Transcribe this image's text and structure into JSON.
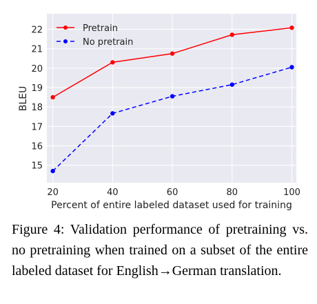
{
  "chart_data": {
    "type": "line",
    "title": "",
    "xlabel": "Percent of entire labeled dataset used for training",
    "ylabel": "BLEU",
    "x": [
      20,
      40,
      60,
      80,
      100
    ],
    "xticks": [
      "20",
      "40",
      "60",
      "80",
      "100"
    ],
    "yticks": [
      "15",
      "16",
      "17",
      "18",
      "19",
      "20",
      "21",
      "22"
    ],
    "xlim": [
      18,
      101.5
    ],
    "ylim": [
      14.1,
      22.8
    ],
    "grid": true,
    "legend_position": "top-left",
    "series": [
      {
        "name": "Pretrain",
        "values": [
          18.5,
          20.3,
          20.75,
          21.72,
          22.08
        ],
        "color": "#ff0000",
        "line_style": "solid",
        "marker": "circle"
      },
      {
        "name": "No pretrain",
        "values": [
          14.7,
          17.67,
          18.55,
          19.15,
          20.05
        ],
        "color": "#0000ff",
        "line_style": "dashed",
        "marker": "circle"
      }
    ]
  },
  "colors": {
    "plot_background": "#e9e9f2",
    "grid": "#ffffff"
  },
  "caption": {
    "text": "Figure 4: Validation performance of pretraining vs. no pretraining when trained on a subset of the entire labeled dataset for English→German translation."
  }
}
